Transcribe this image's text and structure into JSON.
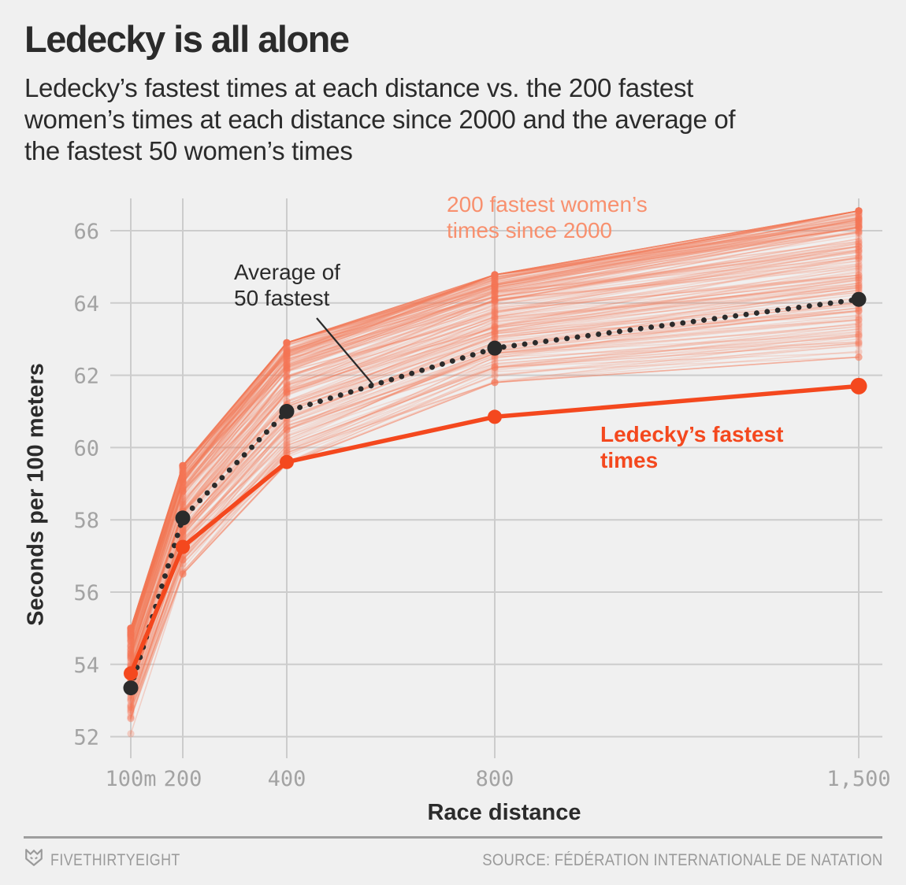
{
  "title": "Ledecky is all alone",
  "subtitle_lines": [
    "Ledecky’s fastest times at each distance vs. the 200 fastest",
    "women’s times at each distance since 2000 and the average of",
    "the fastest 50 women’s times"
  ],
  "colors": {
    "background": "#f0f0f0",
    "grid": "#cccccc",
    "axis_text": "#a3a3a3",
    "dark_text": "#2b2b2b",
    "ledecky_red": "#f4481e",
    "field_salmon": "#f67856",
    "field_label": "#f8906e",
    "footer_text": "#9a9a9a"
  },
  "chart_data": {
    "type": "line",
    "title": "Ledecky is all alone",
    "xlabel": "Race distance",
    "ylabel": "Seconds per 100 meters",
    "x_ticks": [
      {
        "value": 100,
        "label": "100m"
      },
      {
        "value": 200,
        "label": "200"
      },
      {
        "value": 400,
        "label": "400"
      },
      {
        "value": 800,
        "label": "800"
      },
      {
        "value": 1500,
        "label": "1,500"
      }
    ],
    "y_ticks": [
      52,
      54,
      56,
      58,
      60,
      62,
      64,
      66
    ],
    "ylim": [
      51.4,
      66.9
    ],
    "grid": true,
    "distances": [
      100,
      200,
      400,
      800,
      1500
    ],
    "series": [
      {
        "name": "200 fastest women's times since 2000",
        "type": "band-lines",
        "count": 200,
        "seed": 1234,
        "ranges": {
          "100": [
            52.5,
            55.0
          ],
          "200": [
            56.5,
            59.5
          ],
          "400": [
            59.55,
            62.9
          ],
          "800": [
            61.8,
            64.78
          ],
          "1500": [
            62.5,
            66.55
          ]
        },
        "outlier_line": [
          52.08,
          56.5,
          59.55,
          61.8,
          62.5
        ]
      },
      {
        "name": "Average of 50 fastest",
        "type": "dotted-line",
        "values": [
          53.35,
          58.05,
          61.0,
          62.75,
          64.1
        ]
      },
      {
        "name": "Ledecky’s fastest times",
        "type": "solid-line",
        "values": [
          53.75,
          57.25,
          59.6,
          60.85,
          61.7
        ]
      }
    ],
    "annotations": [
      {
        "id": "field",
        "lines": [
          "200 fastest women’s",
          "times since 2000"
        ]
      },
      {
        "id": "average",
        "lines": [
          "Average of",
          "50 fastest"
        ]
      },
      {
        "id": "ledecky",
        "lines": [
          "Ledecky’s fastest",
          "times"
        ]
      }
    ],
    "legend_position": "annotated-inline"
  },
  "footer": {
    "brand": "FIVETHIRTYEIGHT",
    "source": "SOURCE: FÉDÉRATION INTERNATIONALE DE NATATION"
  }
}
